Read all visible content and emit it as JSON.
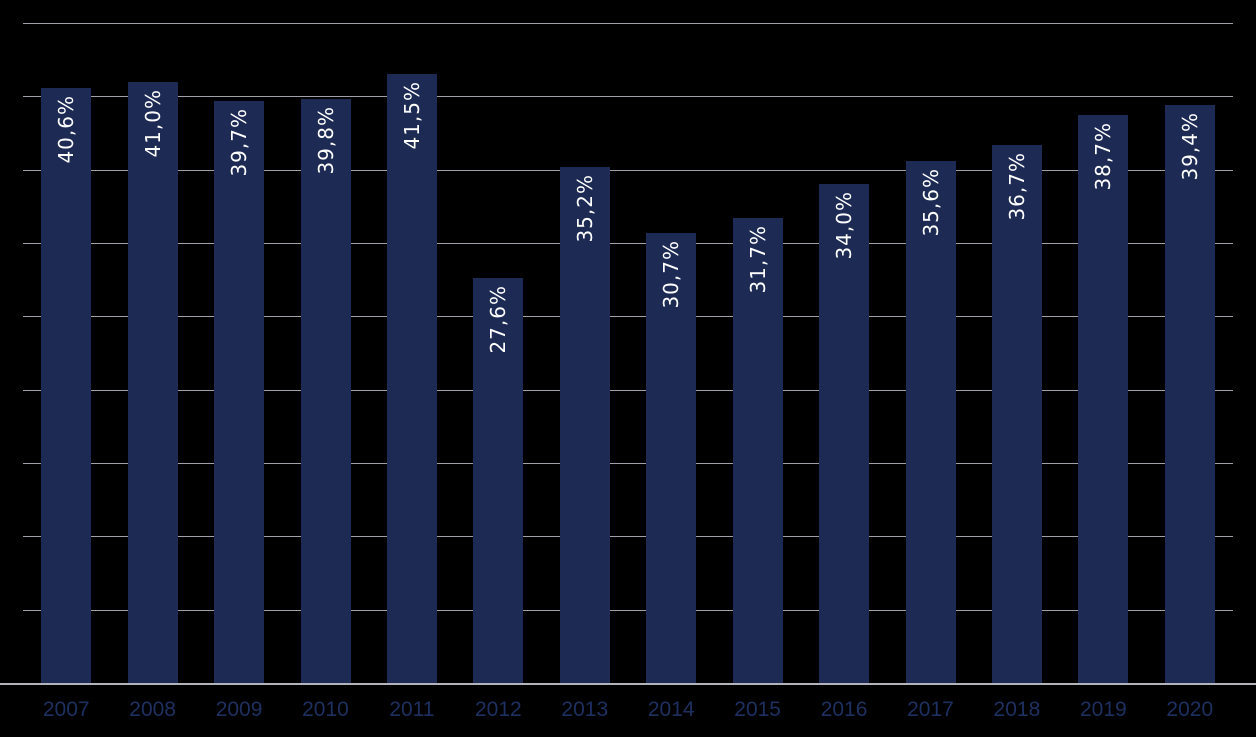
{
  "chart_data": {
    "type": "bar",
    "title": "",
    "xlabel": "",
    "ylabel": "",
    "categories": [
      "2007",
      "2008",
      "2009",
      "2010",
      "2011",
      "2012",
      "2013",
      "2014",
      "2015",
      "2016",
      "2017",
      "2018",
      "2019",
      "2020"
    ],
    "values": [
      40.6,
      41.0,
      39.7,
      39.8,
      41.5,
      27.6,
      35.2,
      30.7,
      31.7,
      34.0,
      35.6,
      36.7,
      38.7,
      39.4
    ],
    "data_labels": [
      "40,6%",
      "41,0%",
      "39,7%",
      "39,8%",
      "41,5%",
      "27,6%",
      "35,2%",
      "30,7%",
      "31,7%",
      "34,0%",
      "35,6%",
      "36,7%",
      "38,7%",
      "39,4%"
    ],
    "ylim": [
      0,
      45
    ],
    "grid_step": 5,
    "grid": true,
    "legend": false,
    "y_tick_labels_visible": false,
    "data_label_rotation": "vertical-bottom-to-top",
    "colors": {
      "background": "#000000",
      "bar_fill": "#1c2a54",
      "data_label": "#ffffff",
      "gridline": "#9fa0a8",
      "axis_line": "#b2b3bb",
      "x_tick_label": "#1e3060"
    }
  }
}
